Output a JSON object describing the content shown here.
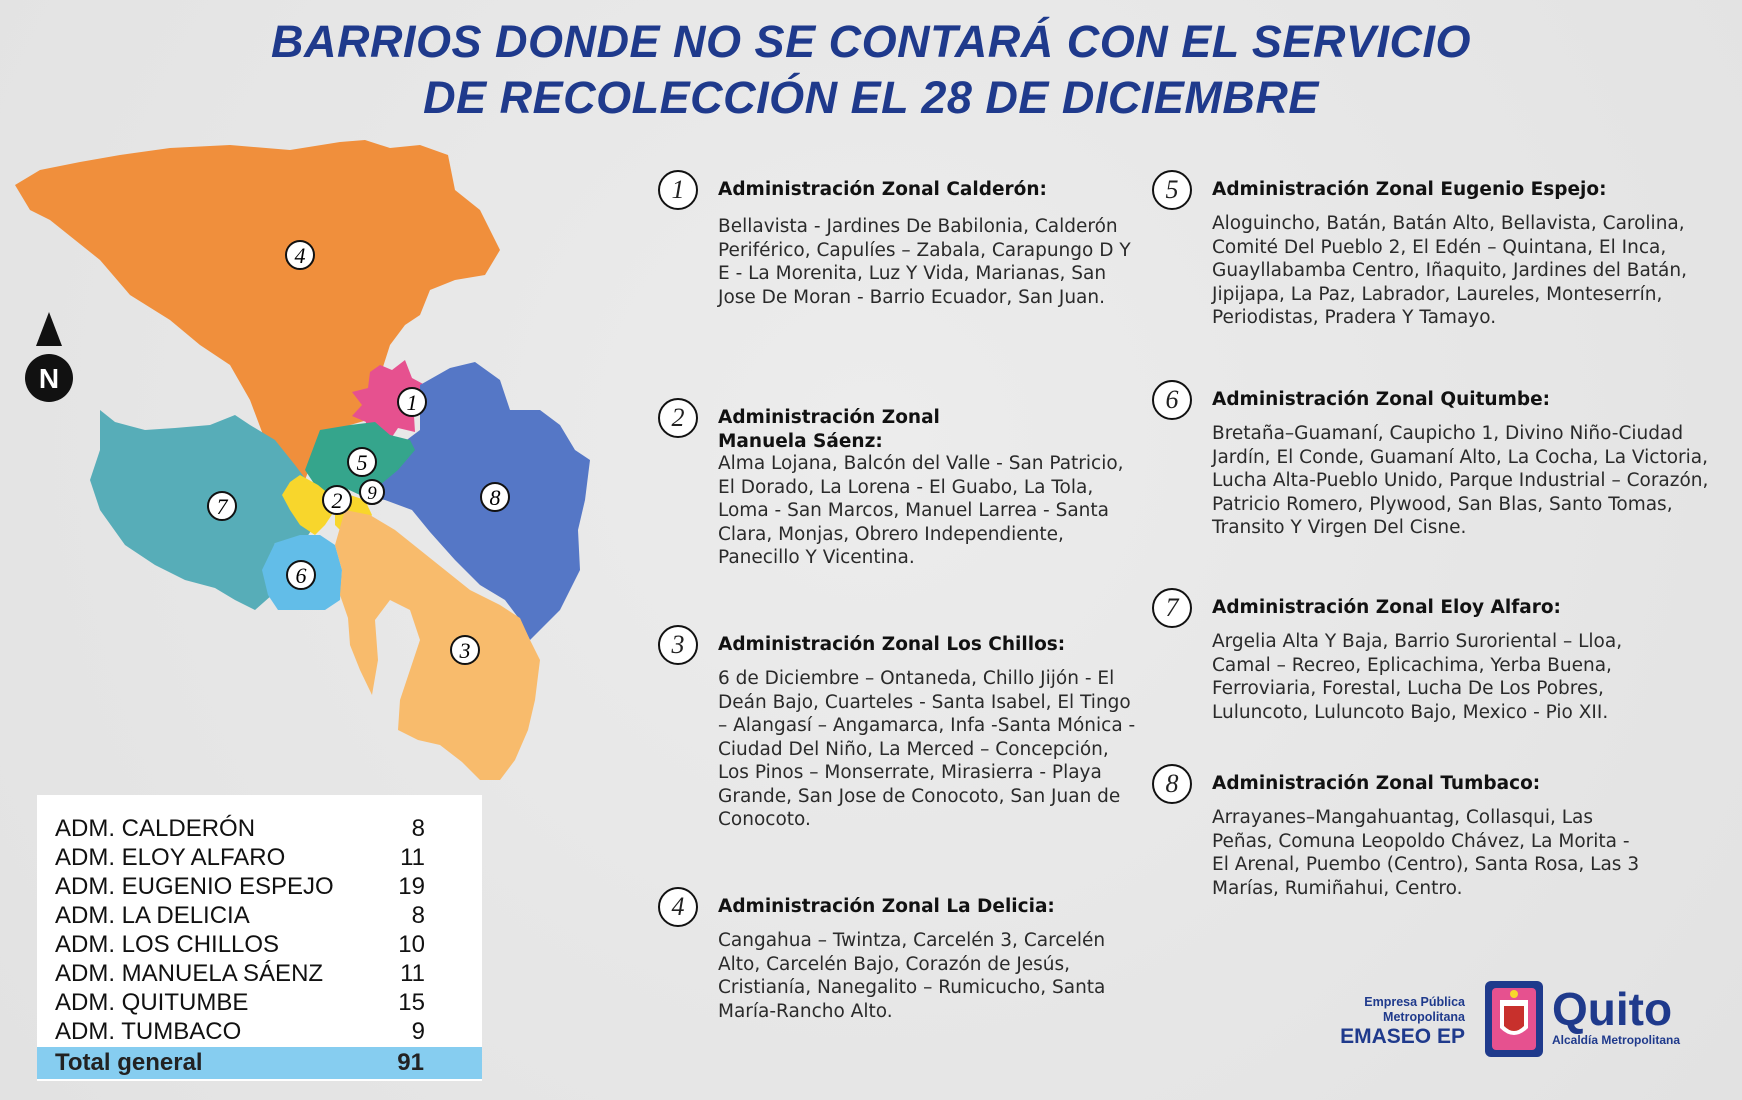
{
  "title_line1": "BARRIOS DONDE NO SE CONTARÁ CON EL SERVICIO",
  "title_line2": "DE RECOLECCIÓN EL 28 DE DICIEMBRE",
  "compass_label": "N",
  "map_labels": [
    "1",
    "2",
    "3",
    "4",
    "5",
    "6",
    "7",
    "8",
    "9"
  ],
  "colors": {
    "title": "#1f3a8c",
    "zone1": "#e6518f",
    "zone2": "#f8d62c",
    "zone3": "#f8bb6c",
    "zone4": "#f08f3c",
    "zone5": "#35a58c",
    "zone6": "#62bde8",
    "zone7": "#57adb8",
    "zone8": "#5577c6",
    "zone9": "#f8d62c",
    "total_row": "#86cdf0"
  },
  "table": {
    "rows": [
      {
        "label": "ADM. CALDERÓN",
        "value": "8"
      },
      {
        "label": "ADM. ELOY ALFARO",
        "value": "11"
      },
      {
        "label": "ADM. EUGENIO ESPEJO",
        "value": "19"
      },
      {
        "label": "ADM. LA DELICIA",
        "value": "8"
      },
      {
        "label": "ADM. LOS CHILLOS",
        "value": "10"
      },
      {
        "label": "ADM. MANUELA SÁENZ",
        "value": "11"
      },
      {
        "label": "ADM. QUITUMBE",
        "value": "15"
      },
      {
        "label": "ADM. TUMBACO",
        "value": "9"
      }
    ],
    "total_label": "Total general",
    "total_value": "91"
  },
  "zones": [
    {
      "num": "1",
      "title": "Administración Zonal Calderón:",
      "text": "Bellavista - Jardines De Babilonia, Calderón Periférico, Capulíes – Zabala, Carapungo D Y E - La Morenita, Luz Y Vida, Marianas, San Jose De Moran - Barrio Ecuador, San Juan."
    },
    {
      "num": "2",
      "title": "Administración Zonal Manuela Sáenz:",
      "text": "Alma Lojana, Balcón del Valle - San Patricio, El Dorado, La Lorena - El Guabo, La Tola, Loma - San Marcos, Manuel Larrea - Santa Clara, Monjas, Obrero Independiente, Panecillo Y Vicentina."
    },
    {
      "num": "3",
      "title": "Administración Zonal Los Chillos:",
      "text": "6 de Diciembre – Ontaneda, Chillo Jijón - El Deán Bajo, Cuarteles - Santa Isabel, El Tingo – Alangasí – Angamarca, Infa -Santa Mónica - Ciudad Del Niño, La Merced – Concepción, Los Pinos – Monserrate, Mirasierra - Playa Grande, San Jose de Conocoto, San Juan de Conocoto."
    },
    {
      "num": "4",
      "title": "Administración Zonal La Delicia:",
      "text": "Cangahua – Twintza, Carcelén 3, Carcelén Alto, Carcelén Bajo, Corazón de Jesús, Cristianía, Nanegalito – Rumicucho, Santa María-Rancho Alto."
    },
    {
      "num": "5",
      "title": "Administración Zonal Eugenio Espejo:",
      "text": "Aloguincho, Batán, Batán Alto, Bellavista, Carolina, Comité Del Pueblo 2, El Edén – Quintana, El Inca, Guayllabamba Centro, Iñaquito, Jardines del Batán, Jipijapa, La Paz, Labrador, Laureles, Monteserrín, Periodistas, Pradera Y Tamayo."
    },
    {
      "num": "6",
      "title": "Administración Zonal Quitumbe:",
      "text": "Bretaña–Guamaní, Caupicho 1, Divino Niño-Ciudad Jardín, El Conde, Guamaní Alto, La Cocha, La Victoria, Lucha Alta-Pueblo Unido, Parque Industrial – Corazón, Patricio Romero, Plywood, San Blas, Santo Tomas, Transito Y Virgen Del Cisne."
    },
    {
      "num": "7",
      "title": "Administración Zonal Eloy Alfaro:",
      "text": "Argelia Alta Y Baja, Barrio Suroriental – Lloa, Camal – Recreo, Eplicachima, Yerba Buena, Ferroviaria, Forestal, Lucha De Los Pobres, Luluncoto, Luluncoto Bajo, Mexico - Pio XII."
    },
    {
      "num": "8",
      "title": "Administración Zonal Tumbaco:",
      "text": "Arrayanes–Mangahuantag, Collasqui, Las Peñas, Comuna Leopoldo Chávez, La Morita - El Arenal, Puembo (Centro), Santa Rosa, Las 3 Marías, Rumiñahui, Centro."
    }
  ],
  "logos": {
    "emaseo_line1": "Empresa Pública",
    "emaseo_line2": "Metropolitana",
    "emaseo_name": "EMASEO EP",
    "quito_name": "Quito",
    "quito_sub": "Alcaldía Metropolitana"
  }
}
